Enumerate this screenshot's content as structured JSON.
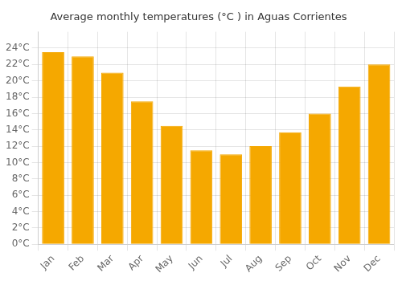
{
  "chart_data": {
    "type": "bar",
    "title": "Average monthly temperatures (°C ) in Aguas Corrientes",
    "categories": [
      "Jan",
      "Feb",
      "Mar",
      "Apr",
      "May",
      "Jun",
      "Jul",
      "Aug",
      "Sep",
      "Oct",
      "Nov",
      "Dec"
    ],
    "values": [
      23.5,
      23.0,
      21.0,
      17.5,
      14.5,
      11.5,
      11.0,
      12.0,
      13.7,
      16.0,
      19.3,
      22.0
    ],
    "color": "#F5A800",
    "ylim": [
      0,
      26
    ],
    "yticks": [
      {
        "value": 0,
        "label": "0°C"
      },
      {
        "value": 2,
        "label": "2°C"
      },
      {
        "value": 4,
        "label": "4°C"
      },
      {
        "value": 6,
        "label": "6°C"
      },
      {
        "value": 8,
        "label": "8°C"
      },
      {
        "value": 10,
        "label": "10°C"
      },
      {
        "value": 12,
        "label": "12°C"
      },
      {
        "value": 14,
        "label": "14°C"
      },
      {
        "value": 16,
        "label": "16°C"
      },
      {
        "value": 18,
        "label": "18°C"
      },
      {
        "value": 20,
        "label": "20°C"
      },
      {
        "value": 22,
        "label": "22°C"
      },
      {
        "value": 24,
        "label": "24°C"
      }
    ],
    "grid": true
  }
}
